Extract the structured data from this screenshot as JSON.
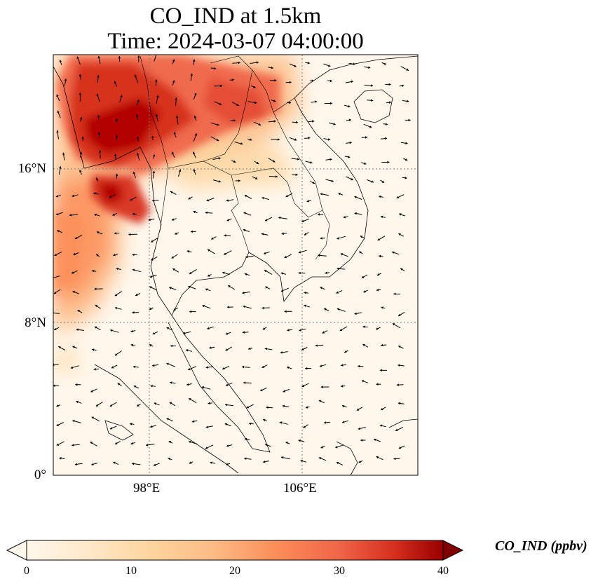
{
  "title_line1": "CO_IND at 1.5km",
  "title_line2": "Time: 2024-03-07 04:00:00",
  "axes": {
    "lat_ticks": [
      {
        "value": 16,
        "label": "16°N"
      },
      {
        "value": 8,
        "label": "8°N"
      },
      {
        "value": 0,
        "label": "0°"
      }
    ],
    "lon_ticks": [
      {
        "value": 98,
        "label": "98°E"
      },
      {
        "value": 106,
        "label": "106°E"
      }
    ],
    "lon_range": [
      93,
      112
    ],
    "lat_range": [
      0,
      22
    ]
  },
  "colorbar": {
    "label": "CO_IND (ppbv)",
    "ticks": [
      "0",
      "10",
      "20",
      "30",
      "40"
    ],
    "range": [
      0,
      40
    ],
    "colormap": "OrRd",
    "extend": "both"
  },
  "colors": {
    "low": "#fff7ec",
    "mid": "#fc8d59",
    "high": "#7f0000",
    "coast": "#000000",
    "grid": "#7a7a7a"
  }
}
